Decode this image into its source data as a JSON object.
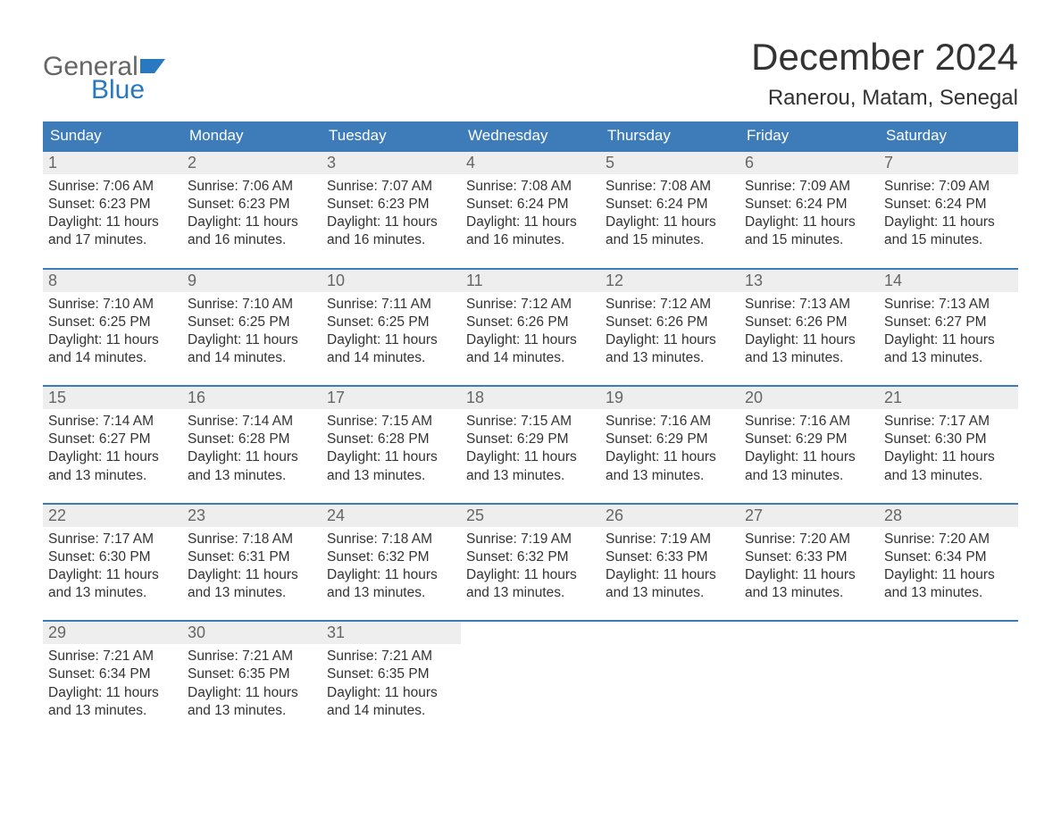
{
  "brand": {
    "line1": "General",
    "line2": "Blue",
    "icon_color": "#2a78bf",
    "text_gray": "#666666"
  },
  "title": "December 2024",
  "location": "Ranerou, Matam, Senegal",
  "colors": {
    "header_bg": "#3d7cb8",
    "header_text": "#ffffff",
    "row_border": "#3d7cb8",
    "daynum_bg": "#eeeeee",
    "daynum_text": "#666666",
    "body_text": "#333333",
    "page_bg": "#ffffff"
  },
  "typography": {
    "title_fontsize": 42,
    "location_fontsize": 24,
    "weekday_fontsize": 17,
    "daynum_fontsize": 18,
    "body_fontsize": 15.5
  },
  "weekdays": [
    "Sunday",
    "Monday",
    "Tuesday",
    "Wednesday",
    "Thursday",
    "Friday",
    "Saturday"
  ],
  "weeks": [
    [
      {
        "n": "1",
        "sr": "7:06 AM",
        "ss": "6:23 PM",
        "dl": "11 hours and 17 minutes."
      },
      {
        "n": "2",
        "sr": "7:06 AM",
        "ss": "6:23 PM",
        "dl": "11 hours and 16 minutes."
      },
      {
        "n": "3",
        "sr": "7:07 AM",
        "ss": "6:23 PM",
        "dl": "11 hours and 16 minutes."
      },
      {
        "n": "4",
        "sr": "7:08 AM",
        "ss": "6:24 PM",
        "dl": "11 hours and 16 minutes."
      },
      {
        "n": "5",
        "sr": "7:08 AM",
        "ss": "6:24 PM",
        "dl": "11 hours and 15 minutes."
      },
      {
        "n": "6",
        "sr": "7:09 AM",
        "ss": "6:24 PM",
        "dl": "11 hours and 15 minutes."
      },
      {
        "n": "7",
        "sr": "7:09 AM",
        "ss": "6:24 PM",
        "dl": "11 hours and 15 minutes."
      }
    ],
    [
      {
        "n": "8",
        "sr": "7:10 AM",
        "ss": "6:25 PM",
        "dl": "11 hours and 14 minutes."
      },
      {
        "n": "9",
        "sr": "7:10 AM",
        "ss": "6:25 PM",
        "dl": "11 hours and 14 minutes."
      },
      {
        "n": "10",
        "sr": "7:11 AM",
        "ss": "6:25 PM",
        "dl": "11 hours and 14 minutes."
      },
      {
        "n": "11",
        "sr": "7:12 AM",
        "ss": "6:26 PM",
        "dl": "11 hours and 14 minutes."
      },
      {
        "n": "12",
        "sr": "7:12 AM",
        "ss": "6:26 PM",
        "dl": "11 hours and 13 minutes."
      },
      {
        "n": "13",
        "sr": "7:13 AM",
        "ss": "6:26 PM",
        "dl": "11 hours and 13 minutes."
      },
      {
        "n": "14",
        "sr": "7:13 AM",
        "ss": "6:27 PM",
        "dl": "11 hours and 13 minutes."
      }
    ],
    [
      {
        "n": "15",
        "sr": "7:14 AM",
        "ss": "6:27 PM",
        "dl": "11 hours and 13 minutes."
      },
      {
        "n": "16",
        "sr": "7:14 AM",
        "ss": "6:28 PM",
        "dl": "11 hours and 13 minutes."
      },
      {
        "n": "17",
        "sr": "7:15 AM",
        "ss": "6:28 PM",
        "dl": "11 hours and 13 minutes."
      },
      {
        "n": "18",
        "sr": "7:15 AM",
        "ss": "6:29 PM",
        "dl": "11 hours and 13 minutes."
      },
      {
        "n": "19",
        "sr": "7:16 AM",
        "ss": "6:29 PM",
        "dl": "11 hours and 13 minutes."
      },
      {
        "n": "20",
        "sr": "7:16 AM",
        "ss": "6:29 PM",
        "dl": "11 hours and 13 minutes."
      },
      {
        "n": "21",
        "sr": "7:17 AM",
        "ss": "6:30 PM",
        "dl": "11 hours and 13 minutes."
      }
    ],
    [
      {
        "n": "22",
        "sr": "7:17 AM",
        "ss": "6:30 PM",
        "dl": "11 hours and 13 minutes."
      },
      {
        "n": "23",
        "sr": "7:18 AM",
        "ss": "6:31 PM",
        "dl": "11 hours and 13 minutes."
      },
      {
        "n": "24",
        "sr": "7:18 AM",
        "ss": "6:32 PM",
        "dl": "11 hours and 13 minutes."
      },
      {
        "n": "25",
        "sr": "7:19 AM",
        "ss": "6:32 PM",
        "dl": "11 hours and 13 minutes."
      },
      {
        "n": "26",
        "sr": "7:19 AM",
        "ss": "6:33 PM",
        "dl": "11 hours and 13 minutes."
      },
      {
        "n": "27",
        "sr": "7:20 AM",
        "ss": "6:33 PM",
        "dl": "11 hours and 13 minutes."
      },
      {
        "n": "28",
        "sr": "7:20 AM",
        "ss": "6:34 PM",
        "dl": "11 hours and 13 minutes."
      }
    ],
    [
      {
        "n": "29",
        "sr": "7:21 AM",
        "ss": "6:34 PM",
        "dl": "11 hours and 13 minutes."
      },
      {
        "n": "30",
        "sr": "7:21 AM",
        "ss": "6:35 PM",
        "dl": "11 hours and 13 minutes."
      },
      {
        "n": "31",
        "sr": "7:21 AM",
        "ss": "6:35 PM",
        "dl": "11 hours and 14 minutes."
      },
      null,
      null,
      null,
      null
    ]
  ],
  "labels": {
    "sunrise": "Sunrise: ",
    "sunset": "Sunset: ",
    "daylight": "Daylight: "
  }
}
